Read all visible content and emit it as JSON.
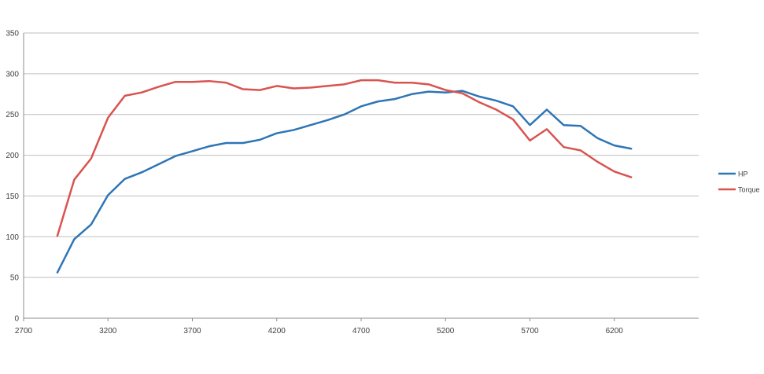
{
  "chart_data": {
    "type": "line",
    "title": "",
    "xlabel": "",
    "ylabel": "",
    "xlim": [
      2700,
      6700
    ],
    "ylim": [
      0,
      350
    ],
    "x_ticks": [
      2700,
      3200,
      3700,
      4200,
      4700,
      5200,
      5700,
      6200
    ],
    "y_ticks": [
      0,
      50,
      100,
      150,
      200,
      250,
      300,
      350
    ],
    "grid": "horizontal",
    "legend_position": "right",
    "x": [
      2900,
      3000,
      3100,
      3200,
      3300,
      3400,
      3500,
      3600,
      3700,
      3800,
      3900,
      4000,
      4100,
      4200,
      4300,
      4400,
      4500,
      4600,
      4700,
      4800,
      4900,
      5000,
      5100,
      5200,
      5300,
      5400,
      5500,
      5600,
      5700,
      5800,
      5900,
      6000,
      6100,
      6200,
      6300
    ],
    "series": [
      {
        "name": "HP",
        "color": "#2E75B6",
        "values": [
          56,
          97,
          115,
          151,
          171,
          179,
          189,
          199,
          205,
          211,
          215,
          215,
          219,
          227,
          231,
          237,
          243,
          250,
          260,
          266,
          269,
          275,
          278,
          277,
          279,
          272,
          267,
          260,
          237,
          256,
          237,
          236,
          221,
          212,
          208
        ]
      },
      {
        "name": "Torque",
        "color": "#D9534F",
        "values": [
          101,
          170,
          196,
          246,
          273,
          277,
          284,
          290,
          290,
          291,
          289,
          281,
          280,
          285,
          282,
          283,
          285,
          287,
          292,
          292,
          289,
          289,
          287,
          280,
          276,
          265,
          256,
          244,
          218,
          232,
          210,
          206,
          192,
          180,
          173
        ]
      }
    ]
  }
}
